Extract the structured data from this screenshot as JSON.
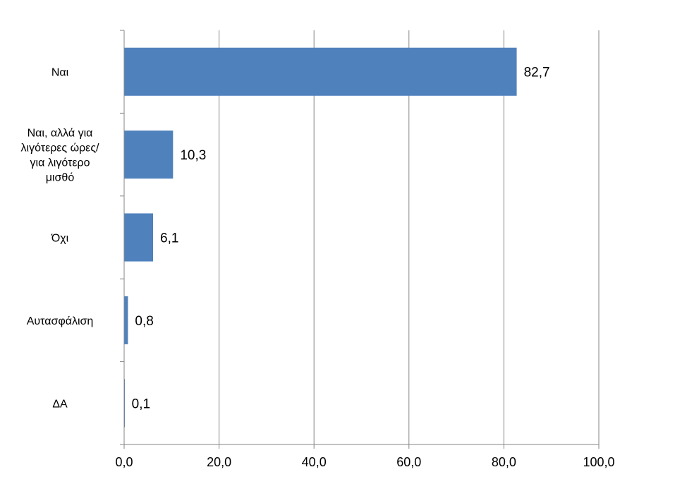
{
  "chart_data": {
    "type": "bar",
    "orientation": "horizontal",
    "title": "",
    "xlabel": "",
    "ylabel": "",
    "categories": [
      [
        "Ναι"
      ],
      [
        "Ναι, αλλά για",
        "λιγότερες ώρες/",
        "για λιγότερο",
        "μισθό"
      ],
      [
        "Όχι"
      ],
      [
        "Αυτασφάλιση"
      ],
      [
        "ΔΑ"
      ]
    ],
    "values": [
      82.7,
      10.3,
      6.1,
      0.8,
      0.1
    ],
    "value_labels": [
      "82,7",
      "10,3",
      "6,1",
      "0,8",
      "0,1"
    ],
    "xlim": [
      0,
      100
    ],
    "x_ticks": [
      0,
      20,
      40,
      60,
      80,
      100
    ],
    "x_tick_labels": [
      "0,0",
      "20,0",
      "40,0",
      "60,0",
      "80,0",
      "100,0"
    ],
    "grid": "vertical",
    "legend": "none",
    "colors": {
      "bar": "#4f81bd",
      "grid": "#868686",
      "axis": "#868686"
    }
  }
}
